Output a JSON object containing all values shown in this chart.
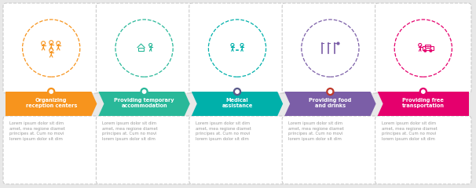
{
  "bg_color": "#e8e8e8",
  "card_bg": "#ffffff",
  "steps": [
    {
      "title": "Organizing\nreception centers",
      "color": "#f7941d"
    },
    {
      "title": "Providing temporary\naccommodation",
      "color": "#29b899"
    },
    {
      "title": "Medical\nassistance",
      "color": "#00b0aa"
    },
    {
      "title": "Providing food\nand drinks",
      "color": "#7b5ea7"
    },
    {
      "title": "Providing free\ntransportation",
      "color": "#e5006d"
    }
  ],
  "dot_colors": [
    "#f7941d",
    "#29b899",
    "#5a5a8a",
    "#c0392b",
    "#e5006d"
  ],
  "body_text": "Lorem ipsum dolor sit dim\namet, mea regione diamet\nprincipes at. Cum no movi\nlorem ipsum dolor sit dim",
  "timeline_color": "#aaaaaa"
}
